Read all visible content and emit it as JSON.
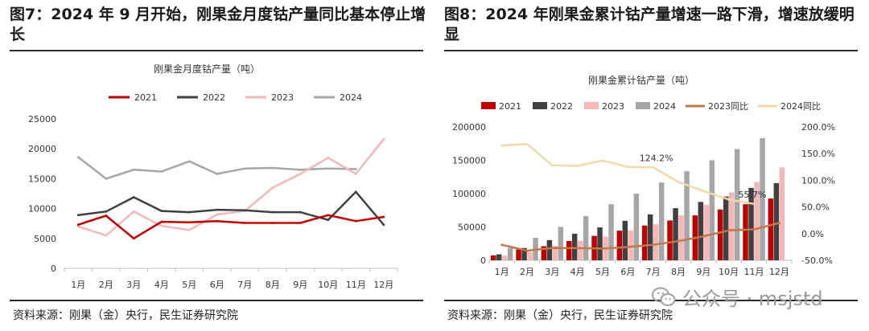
{
  "figures": [
    {
      "title": "图7：2024 年 9 月开始，刚果金月度钴产量同比基本停止增长",
      "source": "资料来源：刚果（金）央行，民生证券研究院"
    },
    {
      "title": "图8：2024 年刚果金累计钴产量增速一路下滑，增速放缓明显",
      "source": "资料来源：刚果（金）央行，民生证券研究院"
    }
  ],
  "watermark": "公众号 · msjstd",
  "colors": {
    "2021": "#c00000",
    "2022": "#404040",
    "2023": "#f4b6b6",
    "2024": "#a6a6a6",
    "2023yoy": "#c0784a",
    "2024yoy": "#f3d9a9"
  },
  "chart_data": [
    {
      "type": "line",
      "title": "刚果金月度钴产量（吨）",
      "categories": [
        "1月",
        "2月",
        "3月",
        "4月",
        "5月",
        "6月",
        "7月",
        "8月",
        "9月",
        "10月",
        "11月",
        "12月"
      ],
      "ylim": [
        0,
        25000
      ],
      "yticks": [
        0,
        5000,
        10000,
        15000,
        20000,
        25000
      ],
      "legend_position": "top",
      "series": [
        {
          "name": "2021",
          "color": "#c00000",
          "values": [
            7300,
            8800,
            5000,
            7800,
            7700,
            7900,
            7600,
            7600,
            7600,
            8900,
            7900,
            8600
          ]
        },
        {
          "name": "2022",
          "color": "#404040",
          "values": [
            8900,
            9500,
            11900,
            9600,
            9400,
            9800,
            9700,
            9400,
            9400,
            8100,
            12800,
            7300
          ]
        },
        {
          "name": "2023",
          "color": "#f4b6b6",
          "values": [
            7000,
            5500,
            9500,
            7100,
            6400,
            9000,
            9600,
            13500,
            15800,
            18500,
            15800,
            21600
          ]
        },
        {
          "name": "2024",
          "color": "#a6a6a6",
          "values": [
            18600,
            15000,
            16500,
            16200,
            17900,
            15800,
            16700,
            16800,
            16500,
            16700,
            16600,
            null
          ]
        }
      ]
    },
    {
      "type": "bar",
      "title": "刚果金累计钴产量（吨）",
      "categories": [
        "1月",
        "2月",
        "3月",
        "4月",
        "5月",
        "6月",
        "7月",
        "8月",
        "9月",
        "10月",
        "11月",
        "12月"
      ],
      "ylim": [
        0,
        200000
      ],
      "yticks": [
        0,
        50000,
        100000,
        150000,
        200000
      ],
      "y2lim": [
        -50,
        200
      ],
      "y2ticks": [
        "-50.0%",
        "0.0%",
        "50.0%",
        "100.0%",
        "150.0%",
        "200.0%"
      ],
      "y2values": [
        -50,
        0,
        50,
        100,
        150,
        200
      ],
      "legend_position": "top",
      "series": [
        {
          "name": "2021",
          "color": "#c00000",
          "axis": "left",
          "kind": "bar",
          "values": [
            7300,
            16100,
            21100,
            28900,
            36600,
            44500,
            52100,
            59700,
            67300,
            76200,
            84100,
            92700
          ]
        },
        {
          "name": "2022",
          "color": "#404040",
          "axis": "left",
          "kind": "bar",
          "values": [
            8900,
            18400,
            30300,
            39900,
            49300,
            59100,
            68800,
            78200,
            87600,
            95700,
            108500,
            115800
          ]
        },
        {
          "name": "2023",
          "color": "#f4b6b6",
          "axis": "left",
          "kind": "bar",
          "values": [
            7000,
            12500,
            22000,
            29100,
            35500,
            44500,
            54100,
            67600,
            83400,
            101900,
            117700,
            139300
          ]
        },
        {
          "name": "2024",
          "color": "#a6a6a6",
          "axis": "left",
          "kind": "bar",
          "values": [
            18600,
            33600,
            50100,
            66300,
            84200,
            100000,
            116700,
            133500,
            150000,
            166700,
            183300,
            null
          ]
        },
        {
          "name": "2023同比",
          "color": "#c0784a",
          "axis": "right",
          "kind": "line",
          "values": [
            -21,
            -32,
            -27,
            -27,
            -28,
            -25,
            -21,
            -14,
            -5,
            6,
            8,
            20
          ]
        },
        {
          "name": "2024同比",
          "color": "#f3d9a9",
          "axis": "right",
          "kind": "line",
          "values": [
            165,
            168,
            128,
            127,
            137,
            125,
            124.2,
            97,
            80,
            64,
            55.7,
            null
          ]
        }
      ],
      "annotations": [
        "124.2%",
        "55.7%"
      ]
    }
  ]
}
